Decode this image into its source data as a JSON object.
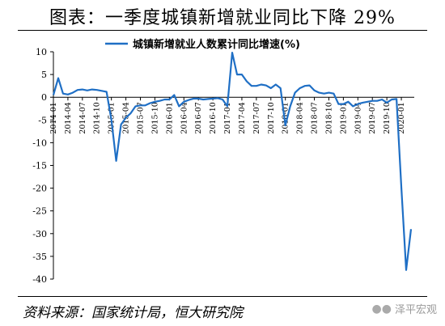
{
  "header": {
    "title": "图表：一季度城镇新增就业同比下降 29%"
  },
  "footer": {
    "source": "资料来源：国家统计局，恒大研究院",
    "watermark": "泽平宏观",
    "watermark_icon": "wechat-icon"
  },
  "colors": {
    "line": "#1f6fc5",
    "axis": "#000000",
    "text": "#000000"
  },
  "chart_data": {
    "type": "line",
    "title": "",
    "xlabel": "",
    "ylabel": "",
    "ylim": [
      -40,
      10
    ],
    "yticks": [
      10,
      5,
      0,
      -5,
      -10,
      -15,
      -20,
      -25,
      -30,
      -35,
      -40
    ],
    "grid": false,
    "legend_position": "top-center",
    "xtick_labels": [
      "2014-01",
      "2014-04",
      "2014-07",
      "2014-10",
      "2015-01",
      "2015-04",
      "2015-07",
      "2015-10",
      "2016-01",
      "2016-04",
      "2016-07",
      "2016-10",
      "2017-01",
      "2017-04",
      "2017-07",
      "2017-10",
      "2018-01",
      "2018-04",
      "2018-07",
      "2018-10",
      "2019-01",
      "2019-04",
      "2019-07",
      "2019-10",
      "2020-01"
    ],
    "series": [
      {
        "name": "城镇新增就业人数累计同比增速(%)",
        "x": [
          "2014-01",
          "2014-02",
          "2014-03",
          "2014-04",
          "2014-05",
          "2014-06",
          "2014-07",
          "2014-08",
          "2014-09",
          "2014-10",
          "2014-11",
          "2014-12",
          "2015-01",
          "2015-02",
          "2015-03",
          "2015-04",
          "2015-05",
          "2015-06",
          "2015-07",
          "2015-08",
          "2015-09",
          "2015-10",
          "2015-11",
          "2015-12",
          "2016-01",
          "2016-02",
          "2016-03",
          "2016-04",
          "2016-05",
          "2016-06",
          "2016-07",
          "2016-08",
          "2016-09",
          "2016-10",
          "2016-11",
          "2016-12",
          "2017-01",
          "2017-02",
          "2017-03",
          "2017-04",
          "2017-05",
          "2017-06",
          "2017-07",
          "2017-08",
          "2017-09",
          "2017-10",
          "2017-11",
          "2017-12",
          "2018-01",
          "2018-02",
          "2018-03",
          "2018-04",
          "2018-05",
          "2018-06",
          "2018-07",
          "2018-08",
          "2018-09",
          "2018-10",
          "2018-11",
          "2018-12",
          "2019-01",
          "2019-02",
          "2019-03",
          "2019-04",
          "2019-05",
          "2019-06",
          "2019-07",
          "2019-08",
          "2019-09",
          "2019-10",
          "2019-11",
          "2019-12",
          "2020-01",
          "2020-02",
          "2020-03"
        ],
        "values": [
          0.5,
          4.2,
          0.8,
          0.6,
          1.0,
          1.6,
          1.7,
          1.5,
          1.7,
          1.6,
          1.4,
          1.2,
          -5.0,
          -14.0,
          -6.0,
          -4.5,
          -3.5,
          -2.0,
          -1.8,
          -1.8,
          -1.3,
          -1.0,
          -0.8,
          -0.5,
          -0.5,
          0.5,
          -2.0,
          -1.0,
          -0.6,
          -0.3,
          -0.3,
          -0.5,
          -0.4,
          -0.3,
          -0.2,
          -0.5,
          -2.0,
          9.8,
          5.0,
          5.0,
          3.5,
          2.5,
          2.5,
          2.8,
          2.6,
          2.0,
          2.8,
          2.0,
          -6.2,
          -2.0,
          1.0,
          2.0,
          2.5,
          2.6,
          1.5,
          1.0,
          0.8,
          1.0,
          0.8,
          -1.5,
          -1.5,
          -1.0,
          -2.0,
          -1.5,
          -1.2,
          -1.0,
          -0.8,
          -0.8,
          -0.5,
          -1.2,
          -0.5,
          -0.4,
          -20.0,
          -38.0,
          -29.0
        ]
      }
    ]
  }
}
